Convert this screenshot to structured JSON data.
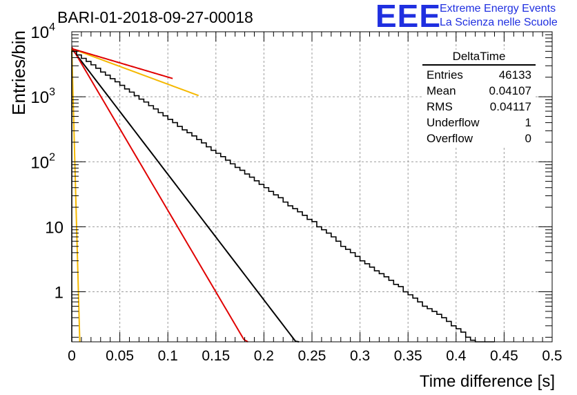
{
  "header": {
    "run_title": "BARI-01-2018-09-27-00018"
  },
  "logo": {
    "mark": "EEE",
    "line1": "Extreme Energy Events",
    "line2": "La Scienza nelle Scuole",
    "color": "#1f2fe0"
  },
  "stats": {
    "title": "DeltaTime",
    "rows": [
      {
        "label": "Entries",
        "value": "46133"
      },
      {
        "label": "Mean",
        "value": "0.04107"
      },
      {
        "label": "RMS",
        "value": "0.04117"
      },
      {
        "label": "Underflow",
        "value": "1"
      },
      {
        "label": "Overflow",
        "value": "0"
      }
    ]
  },
  "chart_data": {
    "type": "line",
    "title": "BARI-01-2018-09-27-00018",
    "xlabel": "Time difference [s]",
    "ylabel": "Entries/bin",
    "xlim": [
      0,
      0.5
    ],
    "ylim": [
      0.17,
      10000
    ],
    "log_y": true,
    "grid": true,
    "x_ticks": [
      "0",
      "0.05",
      "0.1",
      "0.15",
      "0.2",
      "0.25",
      "0.3",
      "0.35",
      "0.4",
      "0.45",
      "0.5"
    ],
    "y_ticks": [
      {
        "value": 1,
        "label": "1"
      },
      {
        "value": 10,
        "label": "10"
      },
      {
        "value": 100,
        "label": "10",
        "exp": "2"
      },
      {
        "value": 1000,
        "label": "10",
        "exp": "3"
      },
      {
        "value": 10000,
        "label": "10",
        "exp": "4"
      }
    ],
    "histogram": {
      "name": "DeltaTime",
      "color": "#000000",
      "bin_width": 0.005,
      "x_start": 0,
      "values": [
        5000,
        4400,
        3900,
        3500,
        3100,
        2750,
        2400,
        2150,
        1900,
        1700,
        1500,
        1320,
        1180,
        1040,
        920,
        830,
        730,
        650,
        570,
        510,
        450,
        400,
        350,
        310,
        280,
        250,
        220,
        195,
        170,
        150,
        135,
        120,
        106,
        93,
        82,
        74,
        65,
        58,
        51,
        45,
        40,
        35,
        31,
        28,
        24,
        21,
        19,
        17,
        15,
        13,
        12,
        10,
        9,
        8,
        7,
        6,
        5,
        4.5,
        4,
        3.5,
        3,
        2.7,
        2.4,
        2.1,
        1.9,
        1.7,
        1.5,
        1.3,
        1.2,
        1,
        0.9,
        0.8,
        0.7,
        0.6,
        0.55,
        0.5,
        0.45,
        0.4,
        0.35,
        0.3,
        0.27,
        0.24,
        0.2,
        0.18,
        0.16,
        0.14,
        0.12,
        0.1
      ]
    },
    "series": [
      {
        "color": "#000000",
        "y0": 5500,
        "slope": 0.02247,
        "x_end": 0.43
      },
      {
        "color": "#f5b800",
        "y0": 5500,
        "slope": 0.0794,
        "x_end": 0.132
      },
      {
        "color": "#f5b800",
        "y0": 5500,
        "slope": 0.00079,
        "x_end": 0.5
      },
      {
        "color": "#e00000",
        "y0": 5500,
        "slope": 0.0993,
        "x_end": 0.105
      },
      {
        "color": "#e00000",
        "y0": 5800,
        "slope": 0.0173,
        "x_end": 0.5
      }
    ]
  }
}
